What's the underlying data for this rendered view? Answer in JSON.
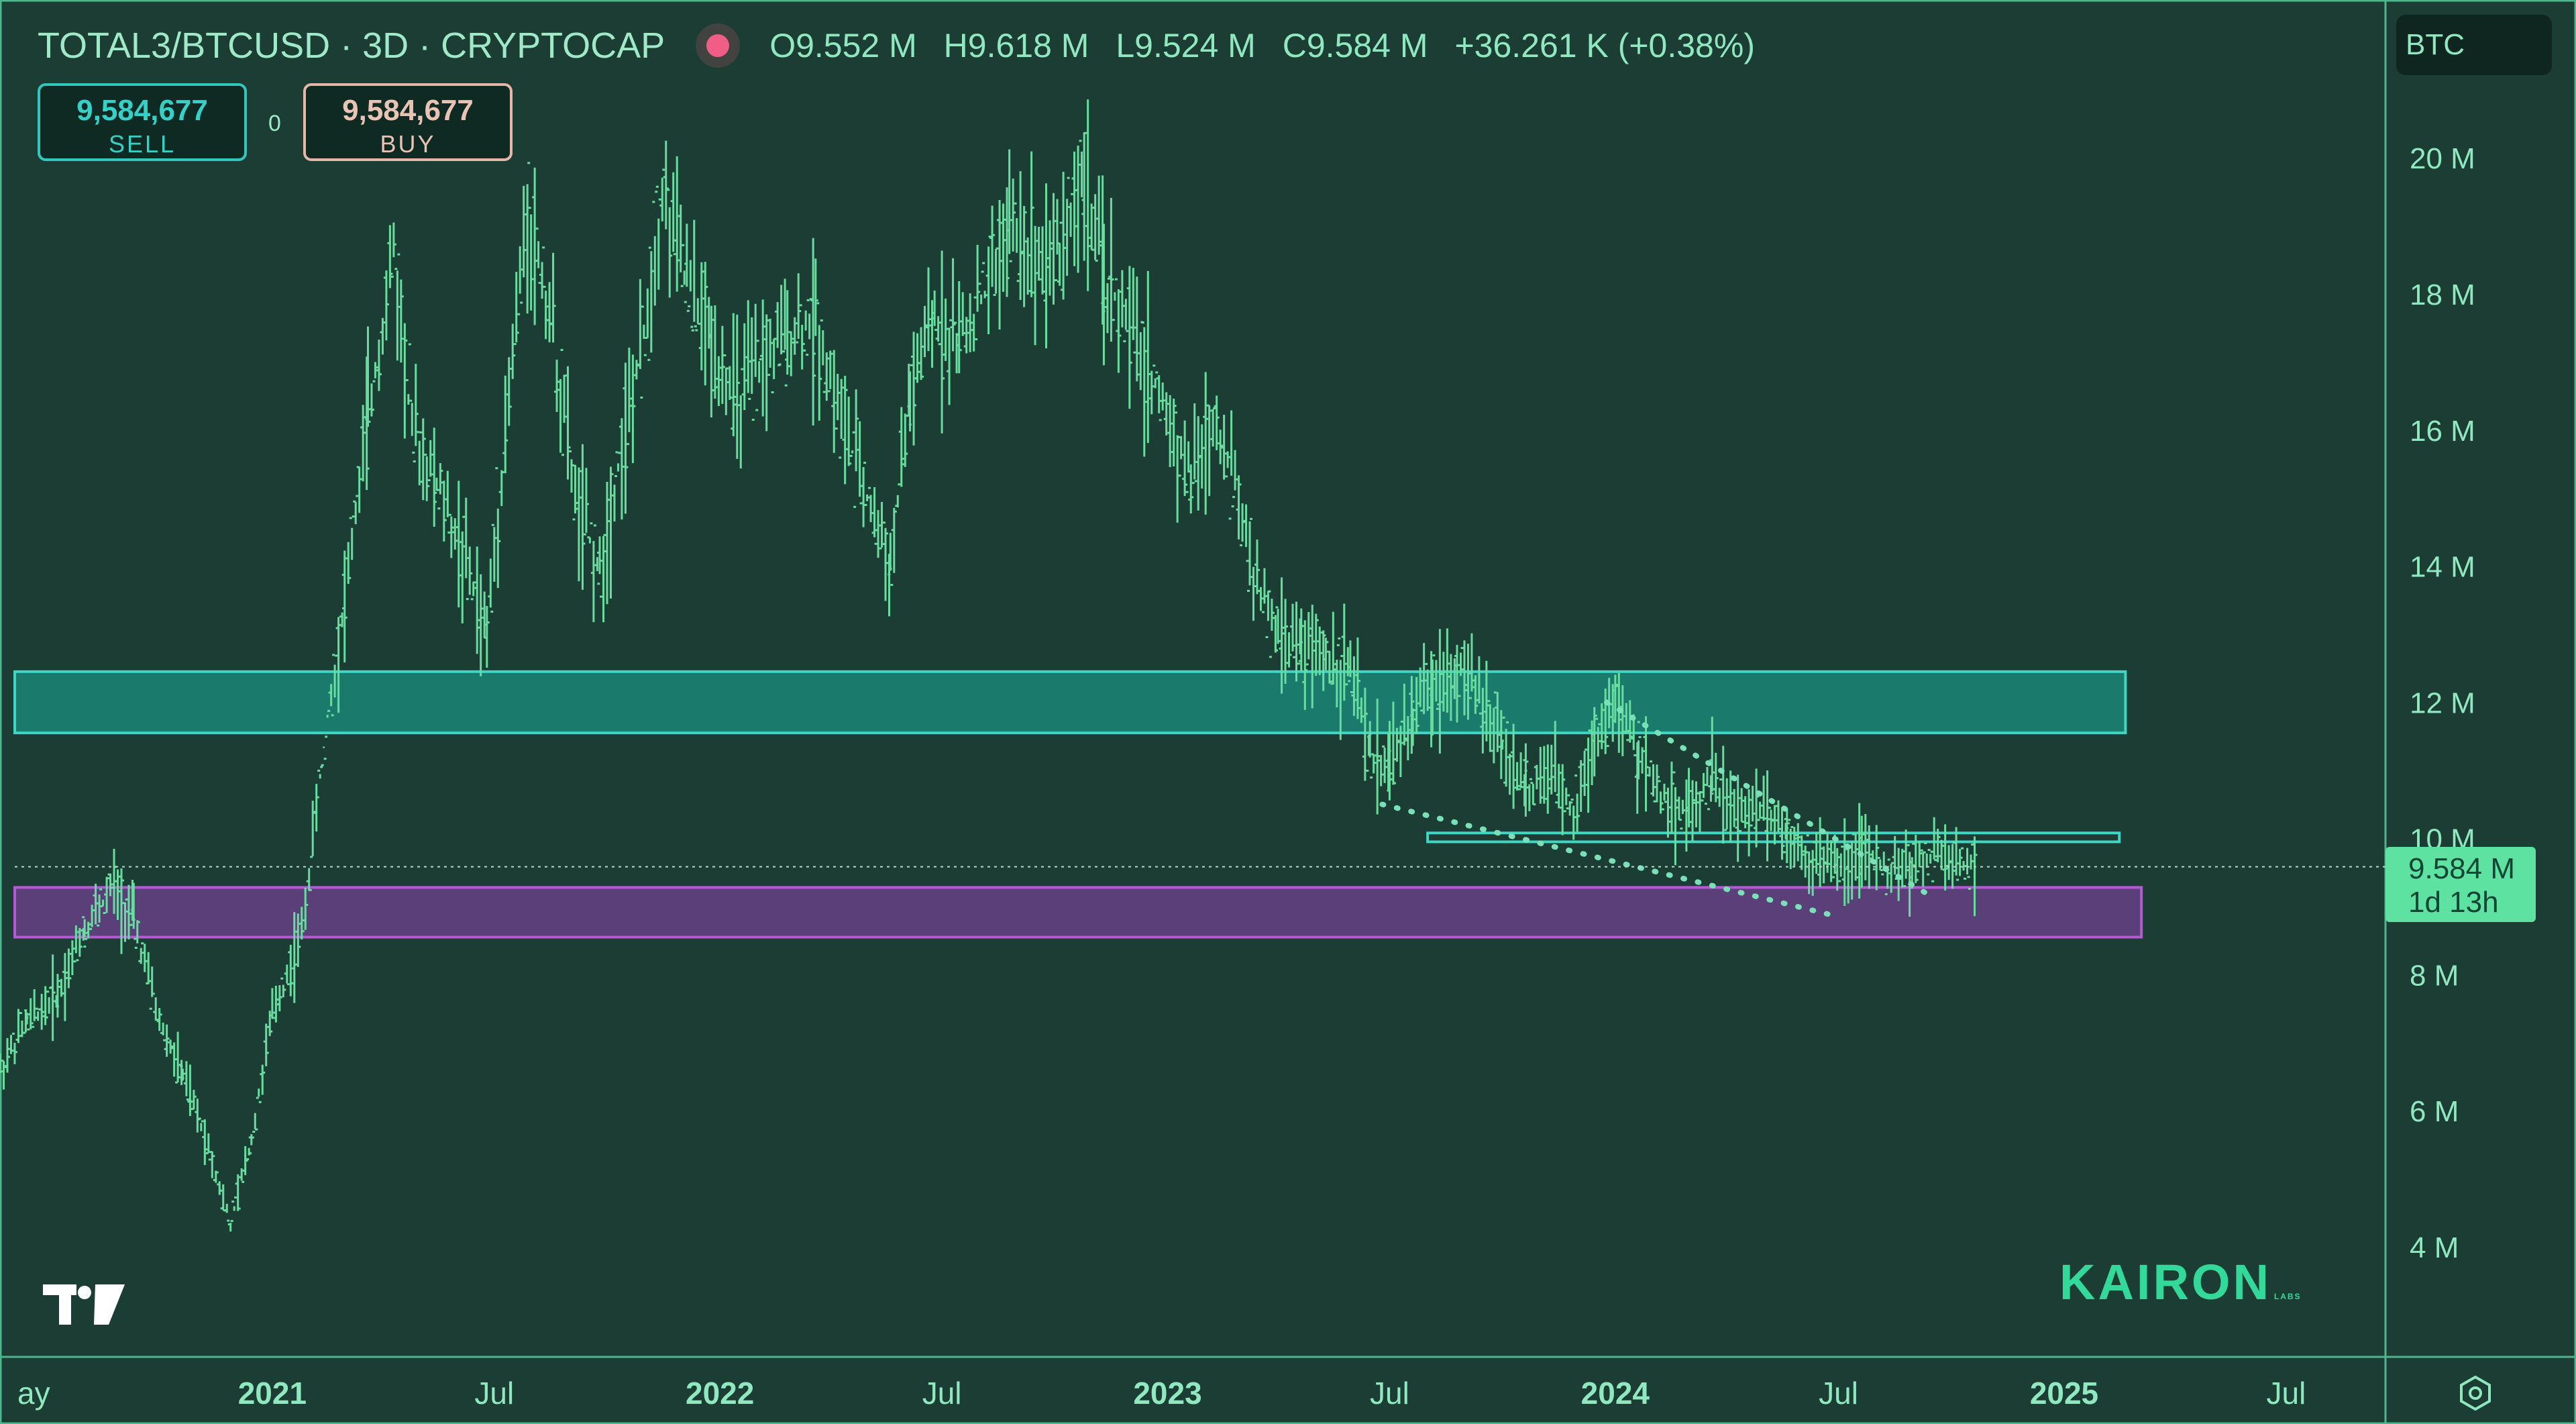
{
  "header": {
    "symbol": "TOTAL3/BTCUSD · 3D · CRYPTOCAP",
    "open": "O9.552 M",
    "high": "H9.618 M",
    "low": "L9.524 M",
    "close": "C9.584 M",
    "change": "+36.261 K (+0.38%)"
  },
  "trade": {
    "sell_price": "9,584,677",
    "sell_label": "SELL",
    "spread": "0",
    "buy_price": "9,584,677",
    "buy_label": "BUY"
  },
  "currency": "BTC",
  "price_tag": {
    "value": "9.584 M",
    "countdown": "1d 13h"
  },
  "brand": {
    "name": "KAIRON",
    "sub": "LABS"
  },
  "colors": {
    "background": "#1b3d33",
    "candle": "#69dda0",
    "resistance_zone": "#1a7a6c",
    "support_zone": "#5b3f78",
    "trendline": "#79e0b8"
  },
  "chart_data": {
    "type": "line",
    "title": "",
    "xlabel": "",
    "ylabel": "",
    "ylim": [
      3000000,
      21500000
    ],
    "y_ticks": [
      {
        "value": 4000000,
        "label": "4 M"
      },
      {
        "value": 6000000,
        "label": "6 M"
      },
      {
        "value": 8000000,
        "label": "8 M"
      },
      {
        "value": 10000000,
        "label": "10 M"
      },
      {
        "value": 12000000,
        "label": "12 M"
      },
      {
        "value": 14000000,
        "label": "14 M"
      },
      {
        "value": 16000000,
        "label": "16 M"
      },
      {
        "value": 18000000,
        "label": "18 M"
      },
      {
        "value": 20000000,
        "label": "20 M"
      }
    ],
    "x_range": [
      "2020-05-24",
      "2025-09-20"
    ],
    "x_ticks": [
      {
        "date": "2020-05-01",
        "label": "ay"
      },
      {
        "date": "2021-01-01",
        "label": "2021",
        "bold": true
      },
      {
        "date": "2021-07-01",
        "label": "Jul"
      },
      {
        "date": "2022-01-01",
        "label": "2022",
        "bold": true
      },
      {
        "date": "2022-07-01",
        "label": "Jul"
      },
      {
        "date": "2023-01-01",
        "label": "2023",
        "bold": true
      },
      {
        "date": "2023-07-01",
        "label": "Jul"
      },
      {
        "date": "2024-01-01",
        "label": "2024",
        "bold": true
      },
      {
        "date": "2024-07-01",
        "label": "Jul"
      },
      {
        "date": "2025-01-01",
        "label": "2025",
        "bold": true
      },
      {
        "date": "2025-07-01",
        "label": "Jul"
      }
    ],
    "series": [
      {
        "values": [
          [
            "2020-05-24",
            6600000
          ],
          [
            "2020-06-15",
            7300000
          ],
          [
            "2020-07-10",
            7700000
          ],
          [
            "2020-08-01",
            8700000
          ],
          [
            "2020-08-25",
            9300000
          ],
          [
            "2020-09-10",
            8800000
          ],
          [
            "2020-10-01",
            7300000
          ],
          [
            "2020-10-20",
            6500000
          ],
          [
            "2020-11-10",
            5500000
          ],
          [
            "2020-11-28",
            4300000
          ],
          [
            "2020-12-15",
            5600000
          ],
          [
            "2021-01-01",
            7400000
          ],
          [
            "2021-01-25",
            8600000
          ],
          [
            "2021-02-15",
            11800000
          ],
          [
            "2021-03-01",
            13500000
          ],
          [
            "2021-03-20",
            16200000
          ],
          [
            "2021-04-10",
            18600000
          ],
          [
            "2021-04-25",
            16000000
          ],
          [
            "2021-05-15",
            15200000
          ],
          [
            "2021-06-05",
            14200000
          ],
          [
            "2021-06-25",
            13000000
          ],
          [
            "2021-07-10",
            16000000
          ],
          [
            "2021-07-28",
            19200000
          ],
          [
            "2021-08-15",
            17800000
          ],
          [
            "2021-09-05",
            15000000
          ],
          [
            "2021-09-25",
            13900000
          ],
          [
            "2021-10-10",
            15500000
          ],
          [
            "2021-10-28",
            17000000
          ],
          [
            "2021-11-15",
            19500000
          ],
          [
            "2021-12-05",
            18200000
          ],
          [
            "2021-12-25",
            17300000
          ],
          [
            "2022-01-15",
            16400000
          ],
          [
            "2022-02-05",
            17000000
          ],
          [
            "2022-02-25",
            17400000
          ],
          [
            "2022-03-20",
            17600000
          ],
          [
            "2022-04-10",
            16200000
          ],
          [
            "2022-05-01",
            15000000
          ],
          [
            "2022-05-20",
            14000000
          ],
          [
            "2022-06-05",
            16500000
          ],
          [
            "2022-06-25",
            17600000
          ],
          [
            "2022-07-15",
            17300000
          ],
          [
            "2022-08-05",
            18000000
          ],
          [
            "2022-08-25",
            19000000
          ],
          [
            "2022-09-15",
            18600000
          ],
          [
            "2022-10-05",
            18700000
          ],
          [
            "2022-10-25",
            19700000
          ],
          [
            "2022-11-10",
            18200000
          ],
          [
            "2022-12-01",
            17500000
          ],
          [
            "2022-12-25",
            16500000
          ],
          [
            "2023-01-20",
            15300000
          ],
          [
            "2023-02-10",
            16200000
          ],
          [
            "2023-02-25",
            15200000
          ],
          [
            "2023-03-15",
            13700000
          ],
          [
            "2023-04-01",
            13000000
          ],
          [
            "2023-04-20",
            12800000
          ],
          [
            "2023-05-10",
            12700000
          ],
          [
            "2023-05-30",
            12500000
          ],
          [
            "2023-06-15",
            11200000
          ],
          [
            "2023-07-01",
            11100000
          ],
          [
            "2023-07-20",
            11800000
          ],
          [
            "2023-08-05",
            12300000
          ],
          [
            "2023-08-25",
            12500000
          ],
          [
            "2023-09-15",
            12000000
          ],
          [
            "2023-10-01",
            11400000
          ],
          [
            "2023-10-20",
            10700000
          ],
          [
            "2023-11-10",
            10900000
          ],
          [
            "2023-11-28",
            10400000
          ],
          [
            "2023-12-15",
            11500000
          ],
          [
            "2024-01-01",
            12000000
          ],
          [
            "2024-01-20",
            11200000
          ],
          [
            "2024-02-10",
            10600000
          ],
          [
            "2024-03-01",
            10400000
          ],
          [
            "2024-03-20",
            10900000
          ],
          [
            "2024-04-10",
            10300000
          ],
          [
            "2024-05-01",
            10500000
          ],
          [
            "2024-05-20",
            10100000
          ],
          [
            "2024-06-10",
            9700000
          ],
          [
            "2024-06-30",
            9600000
          ],
          [
            "2024-07-20",
            9800000
          ],
          [
            "2024-08-10",
            9500000
          ],
          [
            "2024-08-30",
            9600000
          ],
          [
            "2024-09-20",
            9750000
          ],
          [
            "2024-10-05",
            9650000
          ],
          [
            "2024-10-20",
            9584000
          ]
        ]
      }
    ],
    "zones": [
      {
        "color": "resistance",
        "from_date": "2020-05-24",
        "to_date": "2025-02-20",
        "y_low": 11550000,
        "y_high": 12450000
      },
      {
        "color": "support",
        "from_date": "2020-05-24",
        "to_date": "2025-03-05",
        "y_low": 8550000,
        "y_high": 9280000
      },
      {
        "color": "resistance_outline",
        "from_date": "2023-08-01",
        "to_date": "2025-02-15",
        "y_low": 9950000,
        "y_high": 10080000
      }
    ],
    "trendlines": [
      {
        "from": [
          "2023-06-25",
          10500000
        ],
        "to": [
          "2024-07-01",
          8850000
        ]
      },
      {
        "from": [
          "2023-12-25",
          12000000
        ],
        "to": [
          "2024-09-10",
          9200000
        ]
      }
    ],
    "current_price": 9584000
  }
}
